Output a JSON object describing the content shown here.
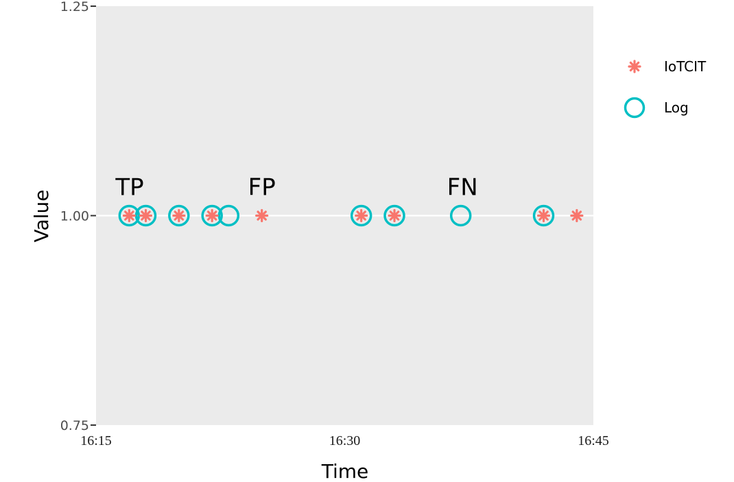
{
  "chart_data": {
    "type": "scatter",
    "xlabel": "Time",
    "ylabel": "Value",
    "x_ticks": [
      "16:15",
      "16:30",
      "16:45"
    ],
    "x_tick_minutes": [
      975,
      990,
      1005
    ],
    "xlim_minutes": [
      975,
      1005
    ],
    "y_ticks": [
      "0.75",
      "1.00",
      "1.25"
    ],
    "y_tick_values": [
      0.75,
      1.0,
      1.25
    ],
    "ylim": [
      0.75,
      1.25
    ],
    "grid": true,
    "legend_position": "right",
    "series": [
      {
        "name": "IoTCIT",
        "marker": "asterisk",
        "color": "#F8766D",
        "x": [
          "16:17",
          "16:18",
          "16:20",
          "16:22",
          "16:25",
          "16:31",
          "16:33",
          "16:42",
          "16:44"
        ],
        "y": [
          1,
          1,
          1,
          1,
          1,
          1,
          1,
          1,
          1
        ]
      },
      {
        "name": "Log",
        "marker": "open-circle",
        "color": "#00BFC4",
        "x": [
          "16:17",
          "16:18",
          "16:20",
          "16:22",
          "16:23",
          "16:31",
          "16:33",
          "16:37",
          "16:42"
        ],
        "y": [
          1,
          1,
          1,
          1,
          1,
          1,
          1,
          1,
          1
        ]
      }
    ],
    "annotations": [
      {
        "text": "TP",
        "x": "16:17"
      },
      {
        "text": "FP",
        "x": "16:25"
      },
      {
        "text": "FN",
        "x": "16:37"
      }
    ]
  },
  "colors": {
    "panel": "#EBEBEB",
    "gridline": "#FFFFFF"
  }
}
